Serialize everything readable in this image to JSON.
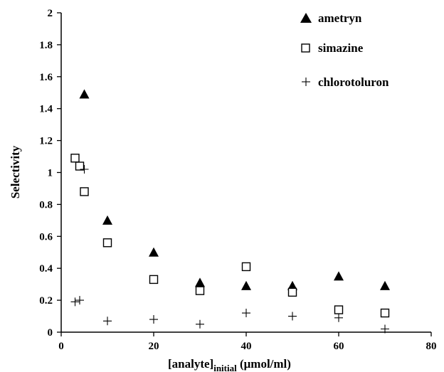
{
  "chart_data": {
    "type": "scatter",
    "xlabel": "[analyte]",
    "xlabel_subscript": "initial",
    "xlabel_units": " (μmol/ml)",
    "ylabel": "Selectivity",
    "xlim": [
      0,
      80
    ],
    "ylim": [
      0,
      2
    ],
    "x_ticks": [
      "0",
      "20",
      "40",
      "60",
      "80"
    ],
    "y_ticks": [
      "0",
      "0.2",
      "0.4",
      "0.6",
      "0.8",
      "1",
      "1.2",
      "1.4",
      "1.6",
      "1.8",
      "2"
    ],
    "grid": false,
    "legend_position": "top-right",
    "series": [
      {
        "name": "ametryn",
        "marker": "filled-triangle",
        "color": "#000000",
        "points": [
          [
            5,
            1.49
          ],
          [
            10,
            0.7
          ],
          [
            20,
            0.5
          ],
          [
            30,
            0.31
          ],
          [
            40,
            0.29
          ],
          [
            50,
            0.29
          ],
          [
            60,
            0.35
          ],
          [
            70,
            0.29
          ]
        ]
      },
      {
        "name": "simazine",
        "marker": "open-square",
        "color": "#000000",
        "points": [
          [
            3,
            1.09
          ],
          [
            4,
            1.04
          ],
          [
            5,
            0.88
          ],
          [
            10,
            0.56
          ],
          [
            20,
            0.33
          ],
          [
            30,
            0.26
          ],
          [
            40,
            0.41
          ],
          [
            50,
            0.25
          ],
          [
            60,
            0.14
          ],
          [
            70,
            0.12
          ]
        ]
      },
      {
        "name": "chlorotoluron",
        "marker": "plus",
        "color": "#000000",
        "points": [
          [
            3,
            0.19
          ],
          [
            4,
            0.2
          ],
          [
            5,
            1.02
          ],
          [
            10,
            0.07
          ],
          [
            20,
            0.08
          ],
          [
            30,
            0.05
          ],
          [
            40,
            0.12
          ],
          [
            50,
            0.1
          ],
          [
            60,
            0.09
          ],
          [
            70,
            0.02
          ]
        ]
      }
    ]
  }
}
